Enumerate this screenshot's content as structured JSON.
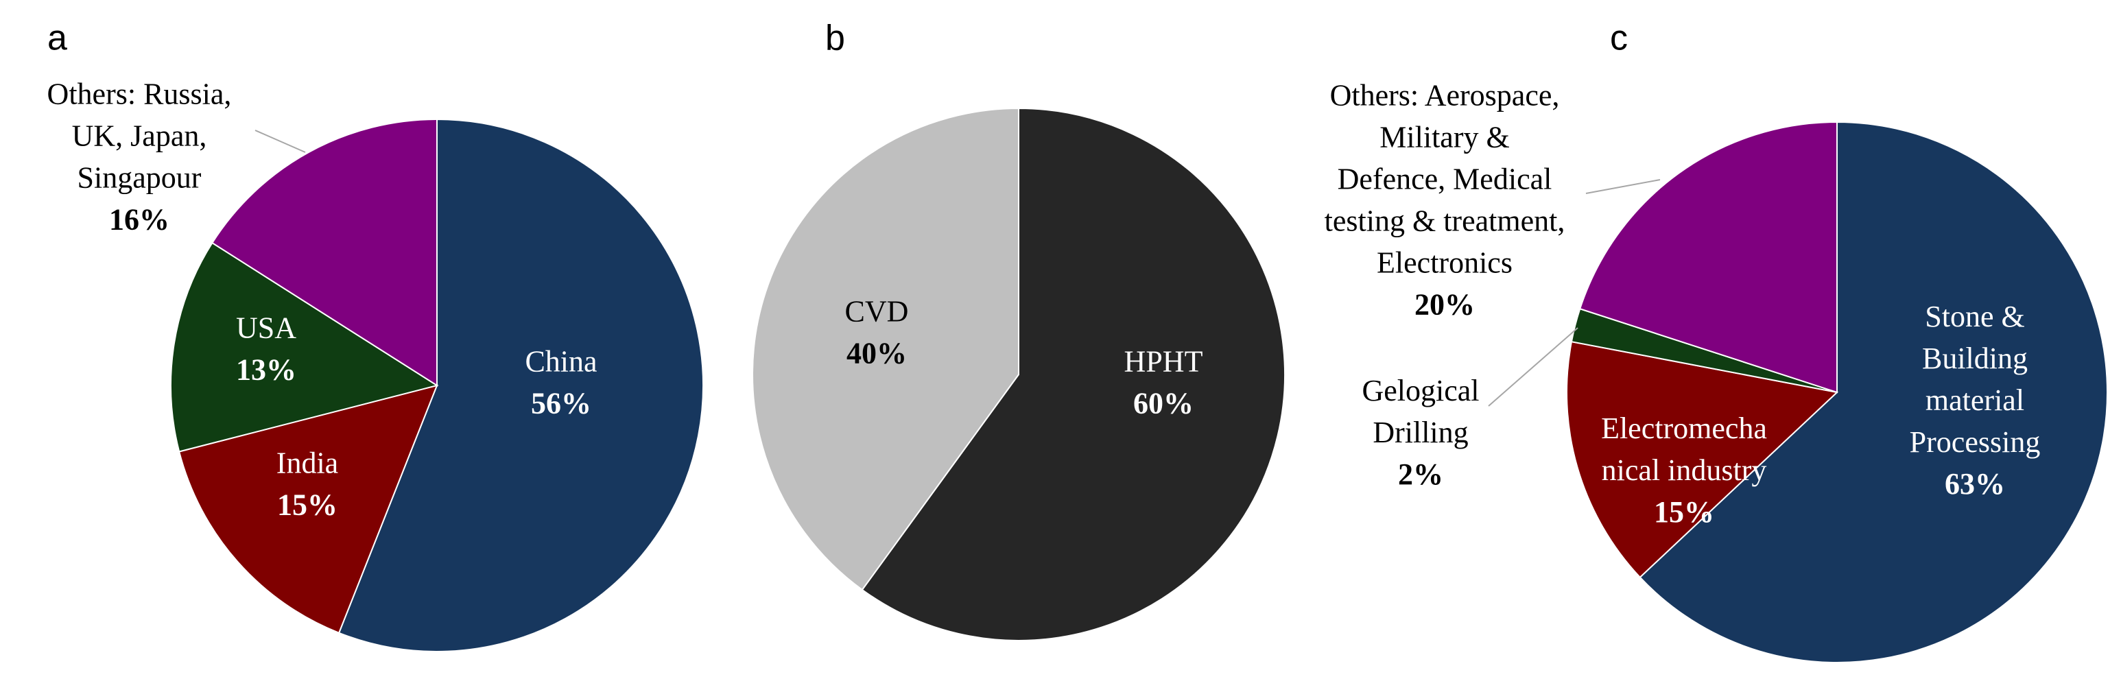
{
  "chart_data": [
    {
      "type": "pie",
      "panel_label": "a",
      "categories": [
        "China",
        "India",
        "USA",
        "Others: Russia,\nUK, Japan,\nSingapour"
      ],
      "values": [
        56,
        15,
        13,
        16
      ],
      "value_labels": [
        "56%",
        "15%",
        "13%",
        "16%"
      ],
      "colors": [
        "#17375e",
        "#7f0000",
        "#0f3d12",
        "#7f007f"
      ]
    },
    {
      "type": "pie",
      "panel_label": "b",
      "categories": [
        "HPHT",
        "CVD"
      ],
      "values": [
        60,
        40
      ],
      "value_labels": [
        "60%",
        "40%"
      ],
      "colors": [
        "#262626",
        "#bfbfbf"
      ]
    },
    {
      "type": "pie",
      "panel_label": "c",
      "categories": [
        "Stone &\nBuilding\nmaterial\nProcessing",
        "Electromecha\nnical industry",
        "Gelogical\nDrilling",
        "Others: Aerospace,\nMilitary &\nDefence, Medical\ntesting & treatment,\nElectronics"
      ],
      "values": [
        63,
        15,
        2,
        20
      ],
      "value_labels": [
        "63%",
        "15%",
        "2%",
        "20%"
      ],
      "colors": [
        "#17375e",
        "#7f0000",
        "#0f3d12",
        "#7f007f"
      ]
    }
  ]
}
